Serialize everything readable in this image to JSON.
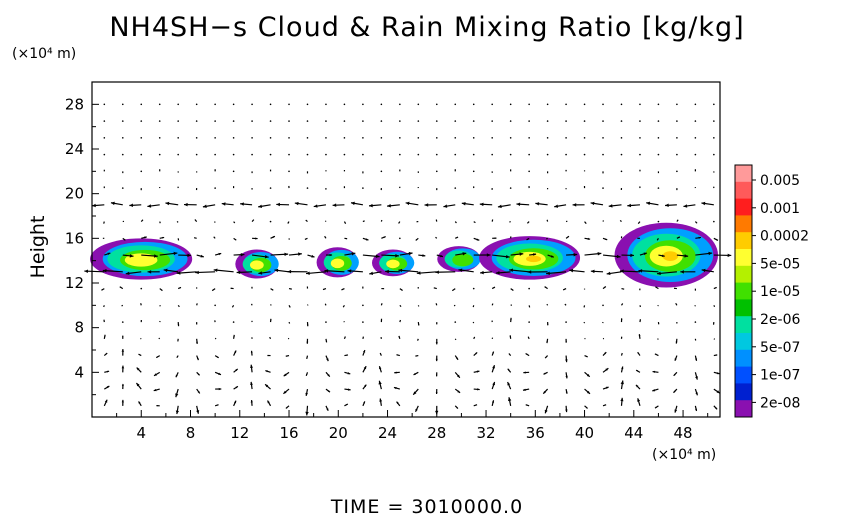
{
  "title": "NH4SH−s Cloud & Rain Mixing Ratio [kg/kg]",
  "y_unit": "(×10⁴ m)",
  "x_unit": "(×10⁴ m)",
  "ylabel": "Height",
  "time_label": "TIME  =  3010000.0",
  "chart_data": {
    "type": "heatmap",
    "title": "NH4SH−s Cloud & Rain Mixing Ratio [kg/kg]",
    "xlabel": "",
    "ylabel": "Height",
    "xlim": [
      0,
      51
    ],
    "ylim": [
      0,
      30
    ],
    "x_ticks": [
      4,
      8,
      12,
      16,
      20,
      24,
      28,
      32,
      36,
      40,
      44,
      48
    ],
    "y_ticks": [
      4,
      8,
      12,
      16,
      20,
      24,
      28
    ],
    "grid": false,
    "colorbar": {
      "labels": [
        "0.005",
        "0.001",
        "0.0002",
        "5e-05",
        "1e-05",
        "2e-06",
        "5e-07",
        "1e-07",
        "2e-08"
      ],
      "colors": [
        "#ff9a9a",
        "#ff5a5a",
        "#ff1e1e",
        "#ff7a00",
        "#ffcc00",
        "#ffff30",
        "#b4f000",
        "#40e000",
        "#00c000",
        "#00e0a0",
        "#00c8e0",
        "#0090ff",
        "#0050ff",
        "#0020d0",
        "#8a10b0"
      ]
    },
    "clouds": [
      {
        "x": 2.2,
        "x_extent": [
          0,
          8.3
        ],
        "y_extent": [
          12.3,
          16.0
        ],
        "peak": 0.00015
      },
      {
        "x": 13.2,
        "x_extent": [
          11.8,
          15.3
        ],
        "y_extent": [
          12.4,
          15.0
        ],
        "peak": 0.00015
      },
      {
        "x": 19.4,
        "x_extent": [
          18.4,
          21.8
        ],
        "y_extent": [
          12.5,
          15.2
        ],
        "peak": 0.00015
      },
      {
        "x": 24.1,
        "x_extent": [
          22.9,
          26.3
        ],
        "y_extent": [
          12.6,
          15.0
        ],
        "peak": 0.00015
      },
      {
        "x": 29.9,
        "x_extent": [
          28.2,
          31.7
        ],
        "y_extent": [
          13.0,
          15.3
        ],
        "peak": 5e-05
      },
      {
        "x": 35.0,
        "x_extent": [
          31.6,
          39.8
        ],
        "y_extent": [
          12.3,
          16.2
        ],
        "peak": 0.0002
      },
      {
        "x": 46.1,
        "x_extent": [
          42.6,
          51.0
        ],
        "y_extent": [
          11.6,
          17.4
        ],
        "peak": 0.0003
      }
    ],
    "wind_vectors": "arrow field of (u, w) wind, strong east-west jets near heights 13, 15 and 19 (x10^4 m), convective cells near the surface"
  }
}
